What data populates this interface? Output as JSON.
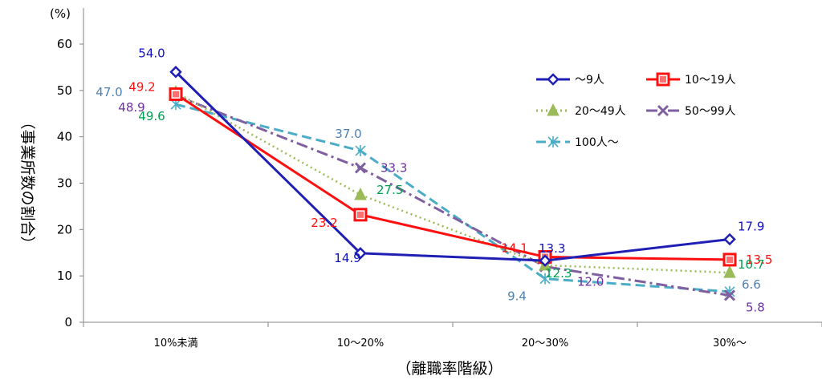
{
  "chart_data": {
    "type": "line",
    "title": "",
    "ylabel": "（事業所数の割合）",
    "yunit": "(%)",
    "xlabel": "（離職率階級）",
    "ylim": [
      0,
      60
    ],
    "yticks": [
      "0",
      "10",
      "20",
      "30",
      "40",
      "50",
      "60"
    ],
    "categories": [
      "10%未満",
      "10～20%",
      "20～30%",
      "30%～"
    ],
    "legend_position": "top-right",
    "grid": false,
    "series": [
      {
        "name": "～9人",
        "values": [
          54.0,
          14.9,
          13.3,
          17.9
        ],
        "labels": [
          "54.0",
          "14.9",
          "13.3",
          "17.9"
        ],
        "color": "#1f1fb4",
        "label_color": "#1010c0",
        "marker": "diamond",
        "dash": "solid"
      },
      {
        "name": "10～19人",
        "values": [
          49.2,
          23.2,
          14.1,
          13.5
        ],
        "labels": [
          "49.2",
          "23.2",
          "14.1",
          "13.5"
        ],
        "color": "#ff1010",
        "label_color": "#ff1010",
        "marker": "square",
        "dash": "solid"
      },
      {
        "name": "20～49人",
        "values": [
          49.6,
          27.5,
          12.3,
          10.7
        ],
        "labels": [
          "49.6",
          "27.5",
          "12.3",
          "10.7"
        ],
        "color": "#9bbb59",
        "label_color": "#00a050",
        "marker": "triangle",
        "dash": "dot"
      },
      {
        "name": "50～99人",
        "values": [
          48.9,
          33.3,
          12.0,
          5.8
        ],
        "labels": [
          "48.9",
          "33.3",
          "12.0",
          "5.8"
        ],
        "color": "#7f5f9f",
        "label_color": "#7030a0",
        "marker": "x",
        "dash": "dashdot"
      },
      {
        "name": "100人～",
        "values": [
          47.0,
          37.0,
          9.4,
          6.6
        ],
        "labels": [
          "47.0",
          "37.0",
          "9.4",
          "6.6"
        ],
        "color": "#4bacc6",
        "label_color": "#5080b0",
        "marker": "star",
        "dash": "dash"
      }
    ]
  }
}
